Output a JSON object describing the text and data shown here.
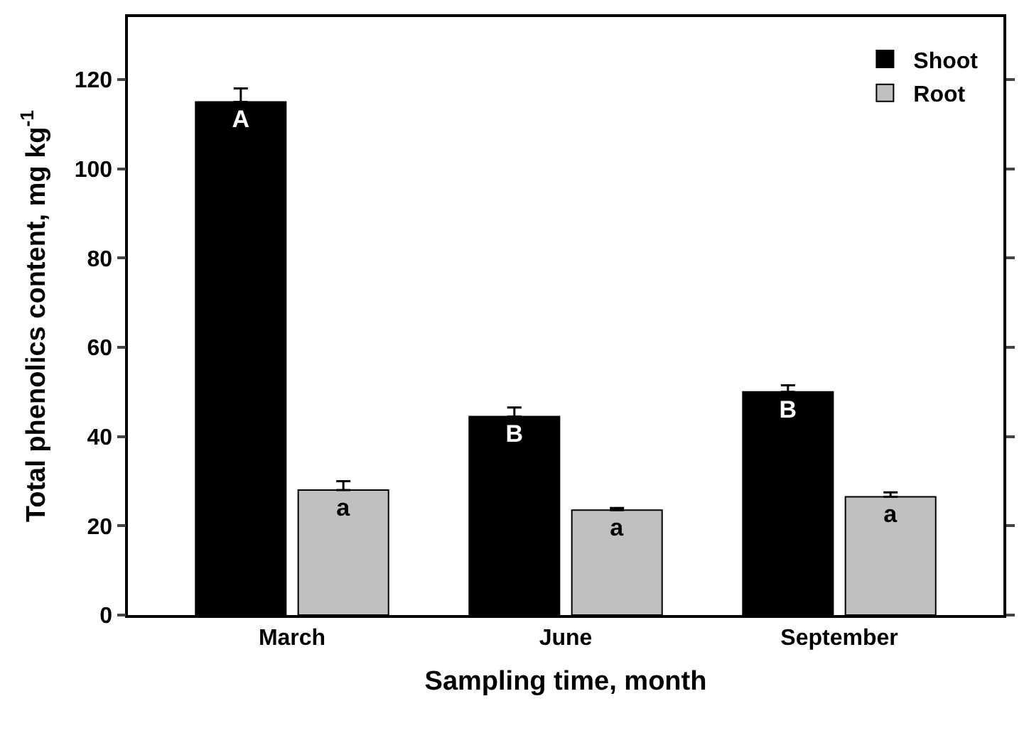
{
  "chart_data": {
    "type": "bar",
    "xlabel": "Sampling time, month",
    "ylabel": "Total phenolics content, mg kg$^{-1}$",
    "categories": [
      "March",
      "June",
      "September"
    ],
    "series": [
      {
        "name": "Shoot",
        "color": "#000000",
        "values": [
          115,
          44.5,
          50
        ],
        "errors": [
          [
            115,
            118
          ],
          [
            44.5,
            46.5
          ],
          [
            50,
            51.5
          ]
        ],
        "value_labels": [
          "A",
          "B",
          "B"
        ]
      },
      {
        "name": "Root",
        "color": "#c0c0c0",
        "values": [
          28,
          23.5,
          26.5
        ],
        "errors": [
          [
            28,
            30
          ],
          [
            23.5,
            24
          ],
          [
            26.5,
            27.5
          ]
        ],
        "value_labels": [
          "a",
          "a",
          "a"
        ]
      }
    ],
    "ylim": [
      0,
      134
    ],
    "yticks": [
      0,
      20,
      40,
      60,
      80,
      100,
      120
    ],
    "legend": "top right"
  }
}
